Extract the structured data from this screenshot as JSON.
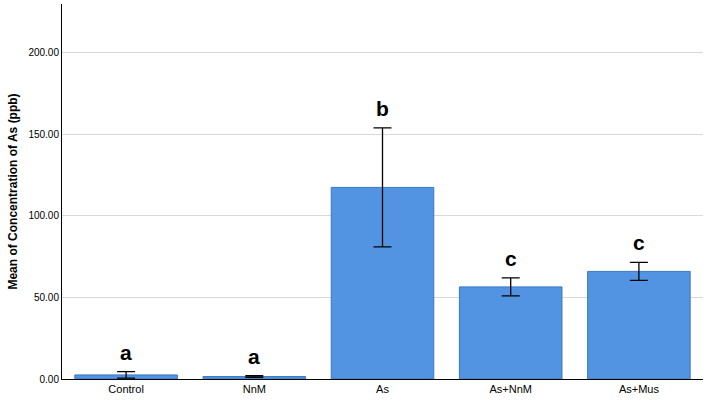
{
  "chart_data": {
    "type": "bar",
    "y_label": "Mean of Concentration of As (ppb)",
    "categories": [
      "Control",
      "NnM",
      "As",
      "As+NnM",
      "As+Mus"
    ],
    "values": [
      2.5,
      1.5,
      117.5,
      56.5,
      66
    ],
    "error": [
      2,
      0.5,
      36.5,
      5.5,
      5.5
    ],
    "annotations": [
      "a",
      "a",
      "b",
      "c",
      "c"
    ],
    "color": "#5294e2",
    "ylim": [
      0,
      230
    ],
    "yticks": [
      {
        "value": 0,
        "label": "0.00"
      },
      {
        "value": 50,
        "label": "50.00"
      },
      {
        "value": 100,
        "label": "100.00"
      },
      {
        "value": 150,
        "label": "150.00"
      },
      {
        "value": 200,
        "label": "200.00"
      }
    ],
    "grid": true
  }
}
